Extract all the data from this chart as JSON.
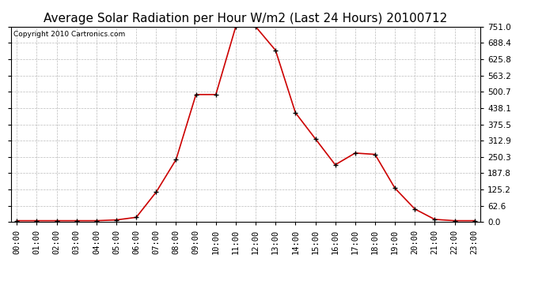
{
  "title": "Average Solar Radiation per Hour W/m2 (Last 24 Hours) 20100712",
  "copyright_text": "Copyright 2010 Cartronics.com",
  "hours": [
    0,
    1,
    2,
    3,
    4,
    5,
    6,
    7,
    8,
    9,
    10,
    11,
    12,
    13,
    14,
    15,
    16,
    17,
    18,
    19,
    20,
    21,
    22,
    23
  ],
  "values": [
    5,
    5,
    5,
    5,
    5,
    8,
    18,
    115,
    240,
    490,
    490,
    751,
    751,
    660,
    420,
    320,
    220,
    265,
    260,
    130,
    50,
    10,
    5,
    5
  ],
  "line_color": "#cc0000",
  "marker_color": "#000000",
  "background_color": "#ffffff",
  "grid_color": "#bbbbbb",
  "ylim": [
    0,
    751
  ],
  "yticks": [
    0.0,
    62.6,
    125.2,
    187.8,
    250.3,
    312.9,
    375.5,
    438.1,
    500.7,
    563.2,
    625.8,
    688.4,
    751.0
  ],
  "ytick_labels": [
    "0.0",
    "62.6",
    "125.2",
    "187.8",
    "250.3",
    "312.9",
    "375.5",
    "438.1",
    "500.7",
    "563.2",
    "625.8",
    "688.4",
    "751.0"
  ],
  "title_fontsize": 11,
  "copyright_fontsize": 6.5,
  "tick_fontsize": 7.5
}
